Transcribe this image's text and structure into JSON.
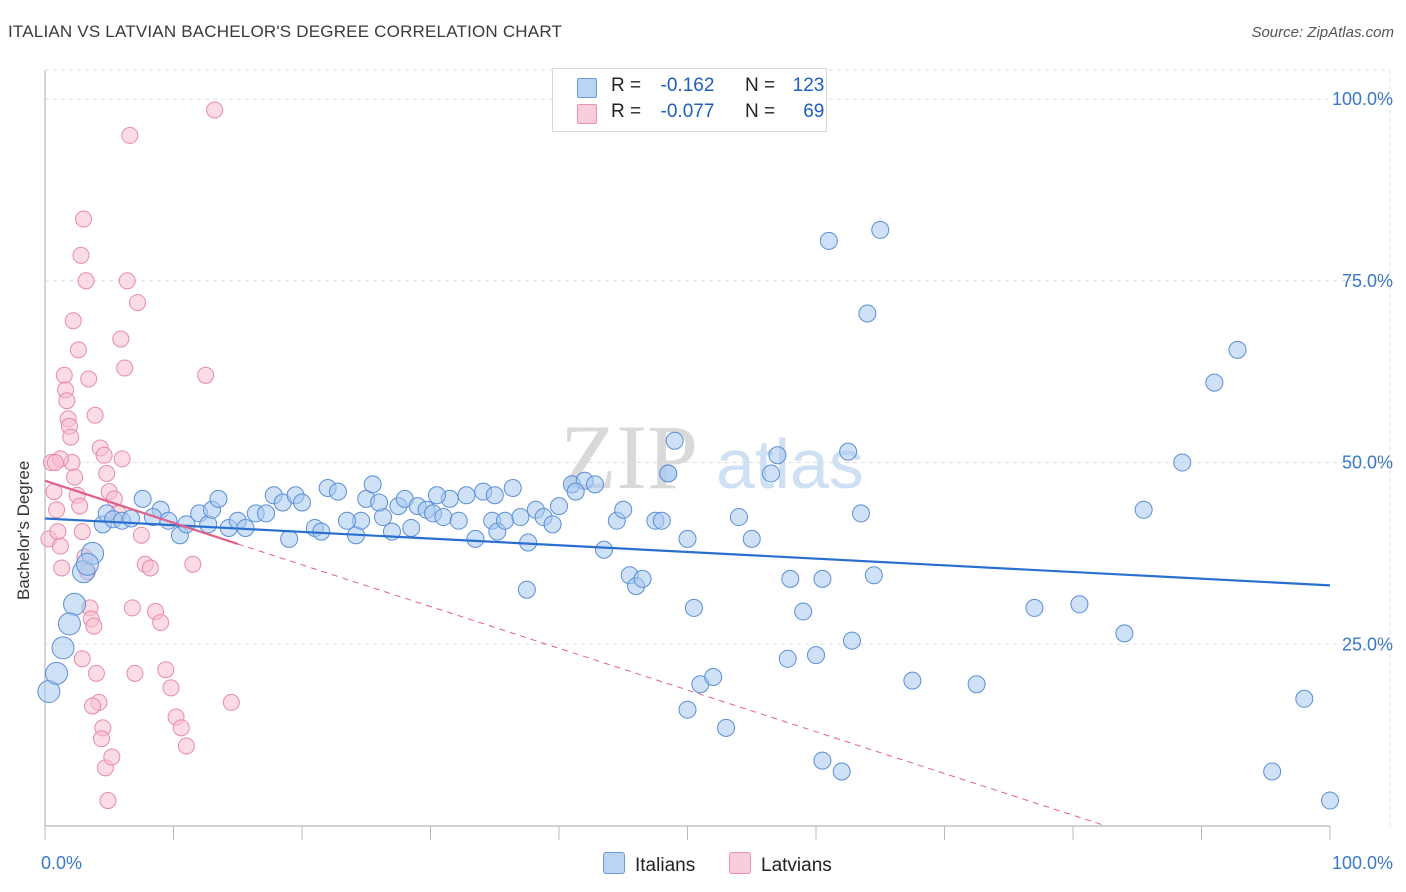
{
  "title": "ITALIAN VS LATVIAN BACHELOR'S DEGREE CORRELATION CHART",
  "source": "Source: ZipAtlas.com",
  "watermark": {
    "zip": "ZIP",
    "atlas": "atlas"
  },
  "legend": {
    "r_label": "R =",
    "n_label": "N =",
    "italians": {
      "r": "-0.162",
      "n": "123"
    },
    "latvians": {
      "r": "-0.077",
      "n": "69"
    }
  },
  "bottom_legend": {
    "italians": "Italians",
    "latvians": "Latvians"
  },
  "colors": {
    "italians_fill": "#a8c8f0",
    "italians_stroke": "#5a8fd6",
    "italians_line": "#2a6fd0",
    "latvians_fill": "#f8c0d0",
    "latvians_stroke": "#e88aa8",
    "latvians_line": "#e0608a",
    "axis_text": "#3a78c8",
    "grid": "#e0e0e0"
  },
  "chart_data": {
    "type": "scatter",
    "title": "ITALIAN VS LATVIAN BACHELOR'S DEGREE CORRELATION CHART",
    "xlabel": "",
    "ylabel": "Bachelor's Degree",
    "xlim": [
      0,
      100
    ],
    "ylim": [
      0,
      104
    ],
    "x_tick_labels": [
      "0.0%",
      "100.0%"
    ],
    "y_ticks": [
      25,
      50,
      75,
      100
    ],
    "y_tick_labels": [
      "25.0%",
      "50.0%",
      "75.0%",
      "100.0%"
    ],
    "grid": true,
    "series": [
      {
        "name": "Italians",
        "trend": {
          "x": [
            0,
            100
          ],
          "y": [
            42.3,
            33.1
          ],
          "style": "solid"
        },
        "points": [
          [
            0.3,
            18.5
          ],
          [
            0.9,
            21
          ],
          [
            1.4,
            24.5
          ],
          [
            2.3,
            30.5
          ],
          [
            1.9,
            27.8
          ],
          [
            3.0,
            35
          ],
          [
            3.7,
            37.5
          ],
          [
            3.3,
            36
          ],
          [
            4.5,
            41.5
          ],
          [
            4.8,
            43
          ],
          [
            5.3,
            42.2
          ],
          [
            6.0,
            42
          ],
          [
            6.7,
            42.3
          ],
          [
            7.6,
            45
          ],
          [
            9.0,
            43.5
          ],
          [
            8.4,
            42.5
          ],
          [
            9.6,
            42
          ],
          [
            10.5,
            40
          ],
          [
            11.0,
            41.5
          ],
          [
            12.0,
            43
          ],
          [
            12.7,
            41.5
          ],
          [
            13.0,
            43.5
          ],
          [
            13.5,
            45
          ],
          [
            14.3,
            41
          ],
          [
            15.0,
            42
          ],
          [
            15.6,
            41
          ],
          [
            16.4,
            43
          ],
          [
            17.2,
            43
          ],
          [
            17.8,
            45.5
          ],
          [
            18.5,
            44.5
          ],
          [
            19.0,
            39.5
          ],
          [
            19.5,
            45.5
          ],
          [
            20.0,
            44.5
          ],
          [
            21.0,
            41
          ],
          [
            21.5,
            40.5
          ],
          [
            22.0,
            46.5
          ],
          [
            22.8,
            46
          ],
          [
            24.2,
            40
          ],
          [
            24.6,
            42
          ],
          [
            25.0,
            45
          ],
          [
            25.5,
            47
          ],
          [
            26.3,
            42.5
          ],
          [
            27.0,
            40.5
          ],
          [
            27.5,
            44
          ],
          [
            28.0,
            45
          ],
          [
            28.5,
            41
          ],
          [
            29.0,
            44
          ],
          [
            29.7,
            43.5
          ],
          [
            30.2,
            43
          ],
          [
            31.0,
            42.5
          ],
          [
            31.5,
            45
          ],
          [
            32.2,
            42
          ],
          [
            32.8,
            45.5
          ],
          [
            33.5,
            39.5
          ],
          [
            34.1,
            46
          ],
          [
            34.8,
            42
          ],
          [
            35.2,
            40.5
          ],
          [
            35.8,
            42
          ],
          [
            36.4,
            46.5
          ],
          [
            37.0,
            42.5
          ],
          [
            37.6,
            39
          ],
          [
            38.2,
            43.5
          ],
          [
            38.8,
            42.5
          ],
          [
            39.5,
            41.5
          ],
          [
            37.5,
            32.5
          ],
          [
            41.0,
            47
          ],
          [
            42.0,
            47.5
          ],
          [
            42.8,
            47
          ],
          [
            41.3,
            46
          ],
          [
            43.5,
            38
          ],
          [
            44.5,
            42
          ],
          [
            45.0,
            43.5
          ],
          [
            45.5,
            34.5
          ],
          [
            46.0,
            33
          ],
          [
            46.5,
            34
          ],
          [
            47.5,
            42
          ],
          [
            48.5,
            48.5
          ],
          [
            49.0,
            53
          ],
          [
            48.0,
            42
          ],
          [
            50.0,
            39.5
          ],
          [
            50.5,
            30
          ],
          [
            51.0,
            19.5
          ],
          [
            50.0,
            16
          ],
          [
            52.0,
            20.5
          ],
          [
            53.0,
            13.5
          ],
          [
            55.0,
            39.5
          ],
          [
            54.0,
            42.5
          ],
          [
            56.5,
            48.5
          ],
          [
            57.0,
            51
          ],
          [
            58.0,
            34
          ],
          [
            57.8,
            23
          ],
          [
            59.0,
            29.5
          ],
          [
            60.0,
            23.5
          ],
          [
            60.5,
            34
          ],
          [
            62.5,
            51.5
          ],
          [
            62.8,
            25.5
          ],
          [
            61.0,
            80.5
          ],
          [
            60.5,
            9
          ],
          [
            64.0,
            70.5
          ],
          [
            65.0,
            82
          ],
          [
            63.5,
            43
          ],
          [
            64.5,
            34.5
          ],
          [
            67.5,
            20
          ],
          [
            72.5,
            19.5
          ],
          [
            77.0,
            30
          ],
          [
            80.5,
            30.5
          ],
          [
            84.0,
            26.5
          ],
          [
            85.5,
            43.5
          ],
          [
            88.5,
            50
          ],
          [
            91.0,
            61
          ],
          [
            92.8,
            65.5
          ],
          [
            95.5,
            7.5
          ],
          [
            98.0,
            17.5
          ],
          [
            100.0,
            3.5
          ],
          [
            48.5,
            48.5
          ],
          [
            62.0,
            7.5
          ],
          [
            23.5,
            42
          ],
          [
            26.0,
            44.5
          ],
          [
            30.5,
            45.5
          ],
          [
            35.0,
            45.5
          ],
          [
            40.0,
            44
          ]
        ]
      },
      {
        "name": "Latvians",
        "trend": {
          "x": [
            0,
            15
          ],
          "y": [
            47.5,
            38.8
          ],
          "style": "solid",
          "extended": {
            "x": [
              15,
              100
            ],
            "y": [
              38.8,
              -10
            ]
          }
        },
        "points": [
          [
            0.3,
            39.5
          ],
          [
            0.5,
            50
          ],
          [
            0.7,
            46
          ],
          [
            0.9,
            43.5
          ],
          [
            1.0,
            40.5
          ],
          [
            1.2,
            38.5
          ],
          [
            1.3,
            35.5
          ],
          [
            1.5,
            62
          ],
          [
            1.6,
            60
          ],
          [
            1.7,
            58.5
          ],
          [
            1.8,
            56
          ],
          [
            1.9,
            55
          ],
          [
            2.0,
            53.5
          ],
          [
            2.1,
            50
          ],
          [
            2.3,
            48
          ],
          [
            2.5,
            45.5
          ],
          [
            2.7,
            44
          ],
          [
            2.9,
            40.5
          ],
          [
            3.1,
            37
          ],
          [
            3.3,
            35
          ],
          [
            3.5,
            30
          ],
          [
            3.6,
            28.5
          ],
          [
            3.8,
            27.5
          ],
          [
            4.0,
            21
          ],
          [
            4.2,
            17
          ],
          [
            4.5,
            13.5
          ],
          [
            4.7,
            8
          ],
          [
            4.9,
            3.5
          ],
          [
            1.2,
            50.5
          ],
          [
            0.8,
            50
          ],
          [
            2.2,
            69.5
          ],
          [
            2.6,
            65.5
          ],
          [
            2.8,
            78.5
          ],
          [
            3.0,
            83.5
          ],
          [
            3.2,
            75
          ],
          [
            3.4,
            61.5
          ],
          [
            3.9,
            56.5
          ],
          [
            4.3,
            52
          ],
          [
            4.6,
            51
          ],
          [
            4.8,
            48.5
          ],
          [
            5.0,
            46
          ],
          [
            5.4,
            45
          ],
          [
            5.7,
            43
          ],
          [
            5.9,
            67
          ],
          [
            6.2,
            63
          ],
          [
            6.4,
            75
          ],
          [
            6.6,
            95
          ],
          [
            7.2,
            72
          ],
          [
            7.5,
            40
          ],
          [
            7.8,
            36
          ],
          [
            8.2,
            35.5
          ],
          [
            8.6,
            29.5
          ],
          [
            9.0,
            28
          ],
          [
            9.4,
            21.5
          ],
          [
            9.8,
            19
          ],
          [
            10.2,
            15
          ],
          [
            10.6,
            13.5
          ],
          [
            11.0,
            11
          ],
          [
            11.5,
            36
          ],
          [
            12.5,
            62
          ],
          [
            13.2,
            98.5
          ],
          [
            14.5,
            17
          ],
          [
            2.9,
            23
          ],
          [
            3.7,
            16.5
          ],
          [
            4.4,
            12
          ],
          [
            5.2,
            9.5
          ],
          [
            6.8,
            30
          ],
          [
            7.0,
            21
          ],
          [
            6.0,
            50.5
          ]
        ]
      }
    ]
  }
}
